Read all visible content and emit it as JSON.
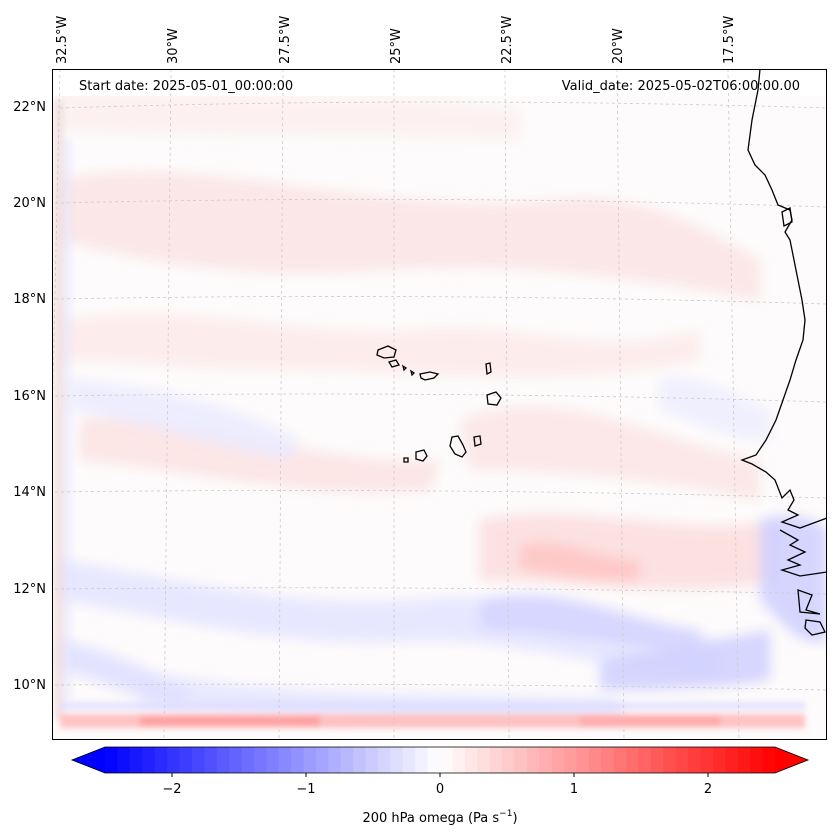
{
  "header": {
    "start_date": "Start date: 2025-05-01_00:00:00",
    "valid_date": "Valid_date: 2025-05-02T06:00:00.00"
  },
  "map": {
    "projection": "Lambert conformal",
    "region": "Cape Verde Islands and West African coast",
    "lon_labels": [
      "32.5°W",
      "30°W",
      "27.5°W",
      "25°W",
      "22.5°W",
      "20°W",
      "17.5°W"
    ],
    "lat_labels": [
      "22°N",
      "20°N",
      "18°N",
      "16°N",
      "14°N",
      "12°N",
      "10°N"
    ],
    "field_colors": {
      "positive_weak": "#fbe5e5",
      "positive_strong": "#ff9f9f",
      "negative_weak": "#e9e9ff",
      "negative_strong": "#b9b9ff",
      "coastline": "#000000",
      "gridline": "#c8c8c8"
    }
  },
  "colorbar": {
    "label": "200 hPa omega (Pa s",
    "label_exponent": "−1",
    "label_close": ")",
    "ticks": [
      "−2",
      "−1",
      "0",
      "1",
      "2"
    ],
    "vmin": -2.7,
    "vmax": 2.7,
    "cmap": "bwr",
    "min_color": "#0000ff",
    "mid_color": "#ffffff",
    "max_color": "#ff0000"
  }
}
